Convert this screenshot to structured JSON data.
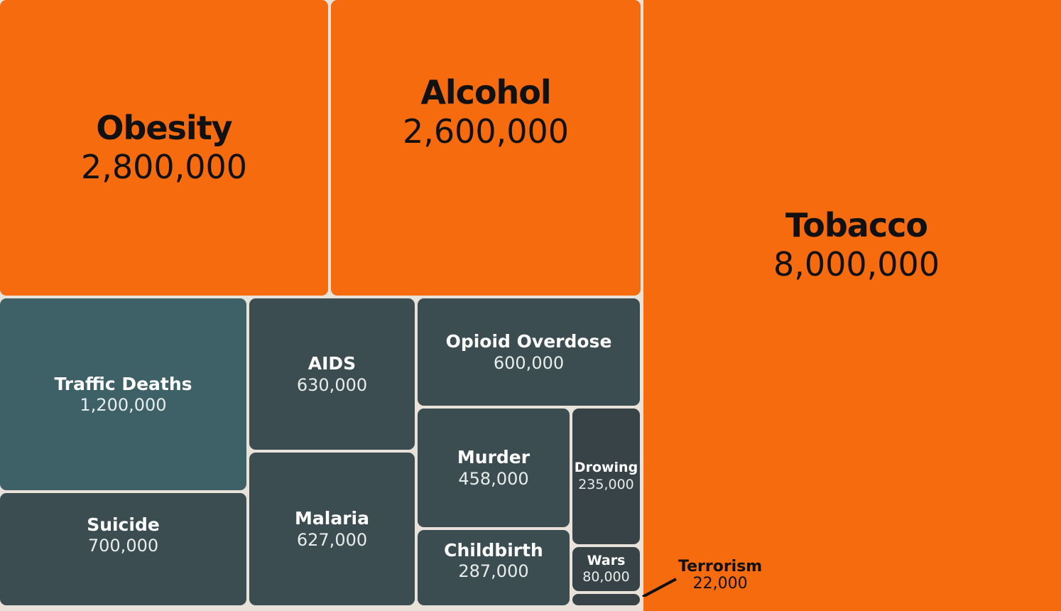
{
  "colors": {
    "background": "#e9e2da",
    "orange": "#f56b0e",
    "teal": "#3e6168",
    "slate": "#3b4d50",
    "dark_slate": "#374346",
    "label_dark": "#111111"
  },
  "chart_data": {
    "type": "treemap",
    "title": "",
    "items": [
      {
        "name": "Obesity",
        "value": 2800000,
        "label": "2,800,000"
      },
      {
        "name": "Alcohol",
        "value": 2600000,
        "label": "2,600,000"
      },
      {
        "name": "Tobacco",
        "value": 8000000,
        "label": "8,000,000"
      },
      {
        "name": "Traffic Deaths",
        "value": 1200000,
        "label": "1,200,000"
      },
      {
        "name": "AIDS",
        "value": 630000,
        "label": "630,000"
      },
      {
        "name": "Opioid Overdose",
        "value": 600000,
        "label": "600,000"
      },
      {
        "name": "Murder",
        "value": 458000,
        "label": "458,000"
      },
      {
        "name": "Drowing",
        "value": 235000,
        "label": "235,000"
      },
      {
        "name": "Malaria",
        "value": 627000,
        "label": "627,000"
      },
      {
        "name": "Suicide",
        "value": 700000,
        "label": "700,000"
      },
      {
        "name": "Childbirth",
        "value": 287000,
        "label": "287,000"
      },
      {
        "name": "Wars",
        "value": 80000,
        "label": "80,000"
      },
      {
        "name": "Terrorism",
        "value": 22000,
        "label": "22,000"
      }
    ]
  }
}
